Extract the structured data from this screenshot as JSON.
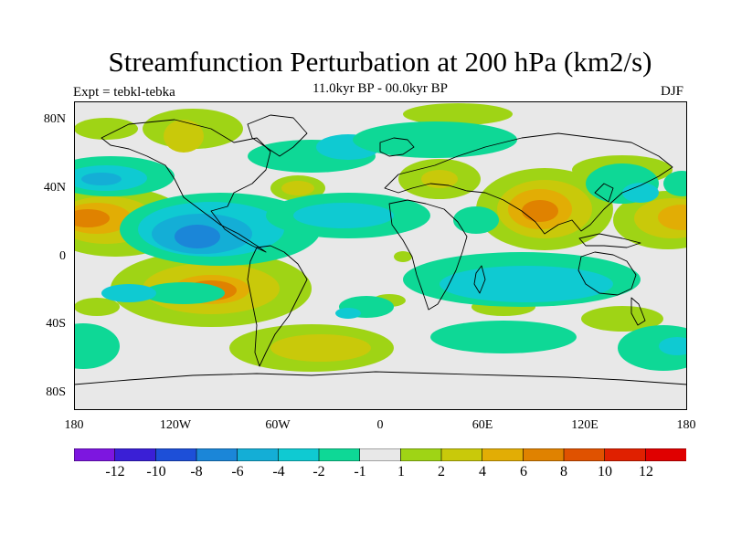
{
  "title": "Streamfunction Perturbation at 200 hPa (km2/s)",
  "subtitle": "11.0kyr BP - 00.0kyr BP",
  "left_label": "Expt = tebkl-tebka",
  "right_label": "DJF",
  "lat_labels": [
    "80N",
    "40N",
    "0",
    "40S",
    "80S"
  ],
  "lon_labels": [
    "180",
    "120W",
    "60W",
    "0",
    "60E",
    "120E",
    "180"
  ],
  "colorbar": {
    "labels": [
      "-12",
      "-10",
      "-8",
      "-6",
      "-4",
      "-2",
      "-1",
      "1",
      "2",
      "4",
      "6",
      "8",
      "10",
      "12"
    ],
    "colors": [
      "#7d16e0",
      "#3a1fd6",
      "#1d4fd8",
      "#1b86d8",
      "#14aed6",
      "#0fcad2",
      "#0ed896",
      "#e8e8e8",
      "#9fd415",
      "#c9c90a",
      "#e2ad05",
      "#e08200",
      "#e05200",
      "#e02000",
      "#e00000"
    ]
  },
  "map": {
    "background": "#e8e8e8",
    "coastline_color": "#000000"
  }
}
